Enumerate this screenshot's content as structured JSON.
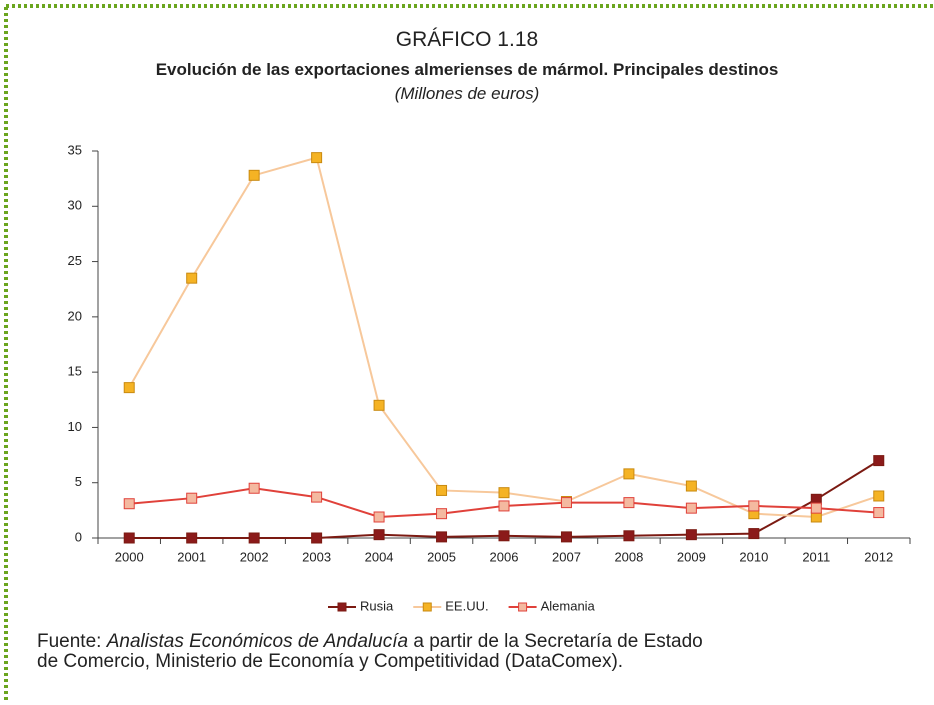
{
  "chart_data": {
    "type": "line",
    "title": "GRÁFICO 1.18",
    "subtitle": "Evolución de las exportaciones almerienses de mármol. Principales destinos",
    "unit_label": "(Millones de euros)",
    "categories": [
      "2000",
      "2001",
      "2002",
      "2003",
      "2004",
      "2005",
      "2006",
      "2007",
      "2008",
      "2009",
      "2010",
      "2011",
      "2012"
    ],
    "series": [
      {
        "name": "Rusia",
        "color": "#7b1a12",
        "marker_color": "#8b1a1a",
        "values": [
          0,
          0,
          0,
          0,
          0.3,
          0.1,
          0.2,
          0.1,
          0.2,
          0.3,
          0.4,
          3.5,
          7.0
        ]
      },
      {
        "name": "EE.UU.",
        "color": "#f7c89b",
        "marker_color": "#f5b324",
        "values": [
          13.6,
          23.5,
          32.8,
          34.4,
          12.0,
          4.3,
          4.1,
          3.3,
          5.8,
          4.7,
          2.2,
          1.9,
          3.8
        ]
      },
      {
        "name": "Alemania",
        "color": "#e0413a",
        "marker_color": "#f4b9a0",
        "values": [
          3.1,
          3.6,
          4.5,
          3.7,
          1.9,
          2.2,
          2.9,
          3.2,
          3.2,
          2.7,
          2.9,
          2.7,
          2.3
        ]
      }
    ],
    "ylim": [
      0,
      35
    ],
    "yticks": [
      0,
      5,
      10,
      15,
      20,
      25,
      30,
      35
    ],
    "grid": false,
    "legend": "bottom"
  },
  "source": {
    "prefix": "Fuente: ",
    "italic": "Analistas Económicos de Andalucía",
    "rest": " a partir de la Secretaría de Estado",
    "line2": "de Comercio, Ministerio de Economía y Competitividad (DataComex)."
  }
}
